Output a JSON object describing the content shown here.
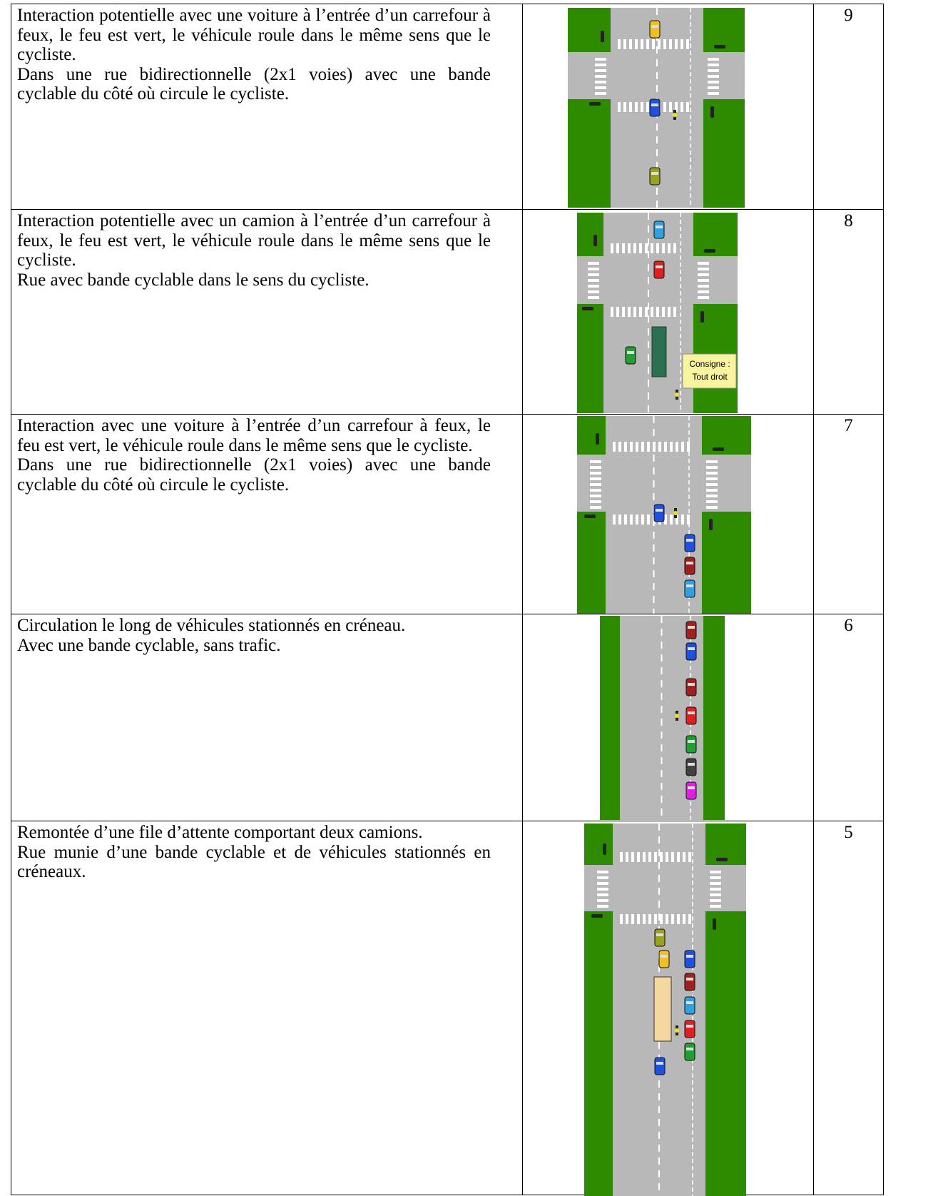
{
  "table": {
    "rows": [
      {
        "description": [
          "Interaction potentielle avec une voiture à l’entrée d’un carrefour à feux, le feu est vert, le véhicule roule dans le même sens que le cycliste.",
          "Dans une rue bidirectionnelle (2x1 voies) avec une bande cyclable du côté où circule le cycliste."
        ],
        "number": 9
      },
      {
        "description": [
          "Interaction potentielle avec un camion à l’entrée d’un carrefour à feux, le feu est vert, le véhicule roule dans le même sens que le cycliste.",
          "Rue avec bande cyclable dans le sens du cycliste."
        ],
        "number": 8,
        "diagram_labels": [
          "Consigne :",
          "Tout droit"
        ]
      },
      {
        "description": [
          "Interaction avec une voiture à l’entrée d’un carrefour à feux, le feu est vert, le véhicule roule dans le même sens que le cycliste.",
          "Dans une rue bidirectionnelle (2x1 voies) avec une bande cyclable du côté où circule le cycliste."
        ],
        "number": 7
      },
      {
        "description": [
          "Circulation le long de véhicules stationnés en créneau.",
          "Avec une bande cyclable, sans trafic."
        ],
        "number": 6
      },
      {
        "description": [
          "Remontée d’une file d’attente comportant deux camions.",
          "Rue munie d’une bande cyclable et de véhicules stationnés en créneaux."
        ],
        "number": 5
      }
    ]
  }
}
